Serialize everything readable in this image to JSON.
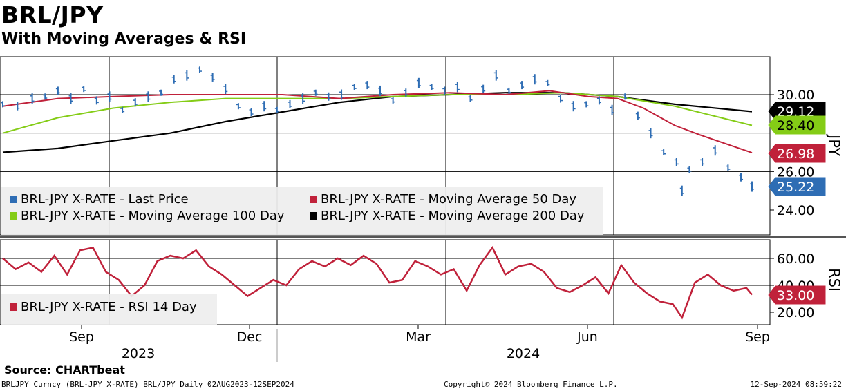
{
  "title": "BRL/JPY",
  "subtitle": "With Moving Averages & RSI",
  "source": "Source: CHARTbeat",
  "footer": {
    "left": "BRLJPY Curncy (BRL-JPY X-RATE) BRL/JPY  Daily 02AUG2023-12SEP2024",
    "middle": "Copyright© 2024 Bloomberg Finance L.P.",
    "right": "12-Sep-2024 08:59:22"
  },
  "colors": {
    "price": "#2e6db4",
    "ma50": "#c0213a",
    "ma100": "#84cc16",
    "ma200": "#000000",
    "rsi": "#c0213a"
  },
  "chart_data": [
    {
      "type": "line",
      "panel": "price",
      "axis_label": "JPY",
      "ylim": [
        23,
        32
      ],
      "yticks": [
        "30.00",
        "26.00",
        "24.00"
      ],
      "grid": true,
      "x_tick_labels": [
        "Sep",
        "Dec",
        "Mar",
        "Jun",
        "Sep"
      ],
      "year_labels": [
        "2023",
        "2024"
      ],
      "legend_position": "bottom-left",
      "series": [
        {
          "name": "BRL-JPY X-RATE - Last Price",
          "style": "bar",
          "last_value": "25.22",
          "points": [
            [
              "2023-08-02",
              29.5
            ],
            [
              "2023-08-10",
              29.4
            ],
            [
              "2023-08-18",
              29.8
            ],
            [
              "2023-08-25",
              29.9
            ],
            [
              "2023-09-01",
              30.2
            ],
            [
              "2023-09-08",
              29.8
            ],
            [
              "2023-09-15",
              30.3
            ],
            [
              "2023-09-22",
              29.7
            ],
            [
              "2023-09-29",
              29.9
            ],
            [
              "2023-10-06",
              29.2
            ],
            [
              "2023-10-13",
              29.6
            ],
            [
              "2023-10-20",
              29.9
            ],
            [
              "2023-10-27",
              30.1
            ],
            [
              "2023-11-03",
              30.8
            ],
            [
              "2023-11-10",
              31.0
            ],
            [
              "2023-11-17",
              31.3
            ],
            [
              "2023-11-24",
              30.9
            ],
            [
              "2023-12-01",
              30.3
            ],
            [
              "2023-12-08",
              29.4
            ],
            [
              "2023-12-15",
              29.1
            ],
            [
              "2023-12-22",
              29.4
            ],
            [
              "2023-12-29",
              29.2
            ],
            [
              "2024-01-05",
              29.5
            ],
            [
              "2024-01-12",
              29.8
            ],
            [
              "2024-01-19",
              30.1
            ],
            [
              "2024-01-26",
              29.9
            ],
            [
              "2024-02-02",
              30.0
            ],
            [
              "2024-02-09",
              30.4
            ],
            [
              "2024-02-16",
              30.5
            ],
            [
              "2024-02-23",
              30.2
            ],
            [
              "2024-03-01",
              29.7
            ],
            [
              "2024-03-08",
              30.1
            ],
            [
              "2024-03-15",
              30.6
            ],
            [
              "2024-03-22",
              30.4
            ],
            [
              "2024-03-29",
              30.2
            ],
            [
              "2024-04-05",
              30.4
            ],
            [
              "2024-04-12",
              29.8
            ],
            [
              "2024-04-19",
              30.3
            ],
            [
              "2024-04-26",
              31.0
            ],
            [
              "2024-05-03",
              30.2
            ],
            [
              "2024-05-10",
              30.5
            ],
            [
              "2024-05-17",
              30.8
            ],
            [
              "2024-05-24",
              30.6
            ],
            [
              "2024-05-31",
              29.8
            ],
            [
              "2024-06-07",
              29.4
            ],
            [
              "2024-06-14",
              29.5
            ],
            [
              "2024-06-21",
              29.7
            ],
            [
              "2024-06-28",
              29.2
            ],
            [
              "2024-07-05",
              29.9
            ],
            [
              "2024-07-12",
              28.9
            ],
            [
              "2024-07-19",
              28.0
            ],
            [
              "2024-07-26",
              27.0
            ],
            [
              "2024-08-02",
              26.5
            ],
            [
              "2024-08-05",
              25.0
            ],
            [
              "2024-08-09",
              26.1
            ],
            [
              "2024-08-16",
              26.5
            ],
            [
              "2024-08-23",
              27.1
            ],
            [
              "2024-08-30",
              26.2
            ],
            [
              "2024-09-06",
              25.7
            ],
            [
              "2024-09-12",
              25.22
            ]
          ]
        },
        {
          "name": "BRL-JPY X-RATE - Moving Average 50 Day",
          "style": "line",
          "last_value": "26.98",
          "points": [
            [
              "2023-08-02",
              29.4
            ],
            [
              "2023-09-01",
              29.8
            ],
            [
              "2023-10-01",
              29.9
            ],
            [
              "2023-11-01",
              30.0
            ],
            [
              "2023-12-01",
              30.0
            ],
            [
              "2024-01-01",
              30.0
            ],
            [
              "2024-02-01",
              29.8
            ],
            [
              "2024-03-01",
              30.0
            ],
            [
              "2024-04-01",
              30.1
            ],
            [
              "2024-05-01",
              30.0
            ],
            [
              "2024-05-25",
              30.2
            ],
            [
              "2024-06-15",
              29.9
            ],
            [
              "2024-07-01",
              29.8
            ],
            [
              "2024-07-15",
              29.3
            ],
            [
              "2024-08-01",
              28.4
            ],
            [
              "2024-08-15",
              27.9
            ],
            [
              "2024-09-12",
              26.98
            ]
          ]
        },
        {
          "name": "BRL-JPY X-RATE - Moving Average 100 Day",
          "style": "line",
          "last_value": "28.40",
          "points": [
            [
              "2023-08-02",
              28.0
            ],
            [
              "2023-09-01",
              28.8
            ],
            [
              "2023-10-01",
              29.3
            ],
            [
              "2023-11-01",
              29.6
            ],
            [
              "2023-12-01",
              29.8
            ],
            [
              "2024-01-01",
              29.8
            ],
            [
              "2024-02-01",
              29.8
            ],
            [
              "2024-03-01",
              29.9
            ],
            [
              "2024-04-01",
              30.0
            ],
            [
              "2024-05-01",
              30.0
            ],
            [
              "2024-06-01",
              30.1
            ],
            [
              "2024-07-01",
              29.9
            ],
            [
              "2024-08-01",
              29.4
            ],
            [
              "2024-09-12",
              28.4
            ]
          ]
        },
        {
          "name": "BRL-JPY X-RATE - Moving Average 200 Day",
          "style": "line",
          "last_value": "29.12",
          "points": [
            [
              "2023-08-02",
              27.0
            ],
            [
              "2023-09-01",
              27.2
            ],
            [
              "2023-10-01",
              27.6
            ],
            [
              "2023-11-01",
              28.0
            ],
            [
              "2023-12-01",
              28.6
            ],
            [
              "2024-01-01",
              29.1
            ],
            [
              "2024-02-01",
              29.6
            ],
            [
              "2024-03-01",
              29.9
            ],
            [
              "2024-04-01",
              30.0
            ],
            [
              "2024-05-01",
              30.1
            ],
            [
              "2024-06-01",
              30.1
            ],
            [
              "2024-07-01",
              29.9
            ],
            [
              "2024-08-01",
              29.5
            ],
            [
              "2024-09-12",
              29.12
            ]
          ]
        }
      ]
    },
    {
      "type": "line",
      "panel": "rsi",
      "axis_label": "RSI",
      "ylim": [
        10,
        80
      ],
      "yticks": [
        "60.00",
        "40.00",
        "20.00"
      ],
      "grid": true,
      "legend_position": "bottom-left",
      "series": [
        {
          "name": "BRL-JPY X-RATE - RSI 14 Day",
          "last_value": "33.00",
          "points": [
            [
              "2023-08-02",
              60
            ],
            [
              "2023-08-09",
              52
            ],
            [
              "2023-08-16",
              57
            ],
            [
              "2023-08-23",
              50
            ],
            [
              "2023-08-30",
              62
            ],
            [
              "2023-09-06",
              48
            ],
            [
              "2023-09-13",
              66
            ],
            [
              "2023-09-20",
              68
            ],
            [
              "2023-09-27",
              50
            ],
            [
              "2023-10-04",
              44
            ],
            [
              "2023-10-11",
              32
            ],
            [
              "2023-10-18",
              40
            ],
            [
              "2023-10-25",
              58
            ],
            [
              "2023-11-01",
              62
            ],
            [
              "2023-11-08",
              60
            ],
            [
              "2023-11-15",
              66
            ],
            [
              "2023-11-22",
              54
            ],
            [
              "2023-11-29",
              48
            ],
            [
              "2023-12-06",
              40
            ],
            [
              "2023-12-13",
              32
            ],
            [
              "2023-12-20",
              38
            ],
            [
              "2023-12-27",
              44
            ],
            [
              "2024-01-03",
              40
            ],
            [
              "2024-01-10",
              52
            ],
            [
              "2024-01-17",
              58
            ],
            [
              "2024-01-24",
              54
            ],
            [
              "2024-01-31",
              60
            ],
            [
              "2024-02-07",
              55
            ],
            [
              "2024-02-14",
              62
            ],
            [
              "2024-02-21",
              56
            ],
            [
              "2024-02-28",
              42
            ],
            [
              "2024-03-06",
              44
            ],
            [
              "2024-03-13",
              58
            ],
            [
              "2024-03-20",
              54
            ],
            [
              "2024-03-27",
              48
            ],
            [
              "2024-04-03",
              52
            ],
            [
              "2024-04-10",
              36
            ],
            [
              "2024-04-17",
              55
            ],
            [
              "2024-04-24",
              68
            ],
            [
              "2024-05-01",
              48
            ],
            [
              "2024-05-08",
              54
            ],
            [
              "2024-05-15",
              56
            ],
            [
              "2024-05-22",
              50
            ],
            [
              "2024-05-29",
              38
            ],
            [
              "2024-06-05",
              35
            ],
            [
              "2024-06-12",
              40
            ],
            [
              "2024-06-19",
              46
            ],
            [
              "2024-06-26",
              34
            ],
            [
              "2024-07-03",
              55
            ],
            [
              "2024-07-10",
              42
            ],
            [
              "2024-07-17",
              34
            ],
            [
              "2024-07-24",
              28
            ],
            [
              "2024-07-31",
              26
            ],
            [
              "2024-08-05",
              16
            ],
            [
              "2024-08-12",
              42
            ],
            [
              "2024-08-19",
              48
            ],
            [
              "2024-08-26",
              40
            ],
            [
              "2024-09-02",
              36
            ],
            [
              "2024-09-09",
              38
            ],
            [
              "2024-09-12",
              33
            ]
          ]
        }
      ]
    }
  ]
}
